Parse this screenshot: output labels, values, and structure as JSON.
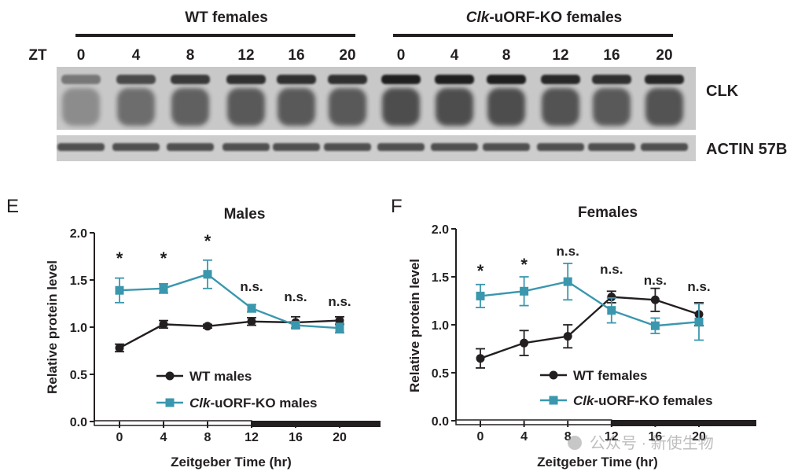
{
  "blot": {
    "group_labels": [
      "WT females",
      "Clk-uORF-KO females"
    ],
    "zt_label": "ZT",
    "lane_labels": [
      "0",
      "4",
      "8",
      "12",
      "16",
      "20",
      "0",
      "4",
      "8",
      "12",
      "16",
      "20"
    ],
    "band_labels": [
      "CLK",
      "ACTIN 57B"
    ]
  },
  "watermark": "公众号 · 新使生物",
  "chart_data": [
    {
      "type": "line",
      "panel_letter": "E",
      "title": "Males",
      "xlabel": "Zeitgeber Time (hr)",
      "ylabel": "Relative protein level",
      "x": [
        0,
        4,
        8,
        12,
        16,
        20
      ],
      "xticks": [
        "0",
        "4",
        "8",
        "12",
        "16",
        "20"
      ],
      "ylim": [
        0,
        2.0
      ],
      "yticks": [
        "0.0",
        "0.5",
        "1.0",
        "1.5",
        "2.0"
      ],
      "grid": false,
      "legend_position": "bottom-center",
      "light_dark_bar": {
        "light": [
          0,
          12
        ],
        "dark": [
          12,
          24
        ]
      },
      "series": [
        {
          "name": "WT males",
          "color": "#231f20",
          "marker": "circle",
          "values": [
            0.78,
            1.03,
            1.01,
            1.06,
            1.05,
            1.07
          ],
          "errors": [
            0.04,
            0.04,
            0.02,
            0.04,
            0.06,
            0.04
          ]
        },
        {
          "name_prefix": "Clk",
          "name_suffix": "-uORF-KO males",
          "color": "#3a97ad",
          "marker": "square",
          "values": [
            1.39,
            1.41,
            1.56,
            1.2,
            1.02,
            0.99
          ],
          "errors": [
            0.13,
            0.05,
            0.15,
            0.04,
            0.03,
            0.05
          ]
        }
      ],
      "annotations": [
        "*",
        "*",
        "*",
        "n.s.",
        "n.s.",
        "n.s."
      ]
    },
    {
      "type": "line",
      "panel_letter": "F",
      "title": "Females",
      "xlabel": "Zeitgeber Time (hr)",
      "ylabel": "Relative protein level",
      "x": [
        0,
        4,
        8,
        12,
        16,
        20
      ],
      "xticks": [
        "0",
        "4",
        "8",
        "12",
        "16",
        "20"
      ],
      "ylim": [
        0,
        2.0
      ],
      "yticks": [
        "0.0",
        "0.5",
        "1.0",
        "1.5",
        "2.0"
      ],
      "grid": false,
      "legend_position": "bottom-center",
      "light_dark_bar": {
        "light": [
          0,
          12
        ],
        "dark": [
          12,
          24
        ]
      },
      "series": [
        {
          "name": "WT females",
          "color": "#231f20",
          "marker": "circle",
          "values": [
            0.65,
            0.81,
            0.88,
            1.29,
            1.26,
            1.11
          ],
          "errors": [
            0.1,
            0.13,
            0.12,
            0.06,
            0.12,
            0.12
          ]
        },
        {
          "name_prefix": "Clk",
          "name_suffix": "-uORF-KO females",
          "color": "#3a97ad",
          "marker": "square",
          "values": [
            1.3,
            1.35,
            1.45,
            1.15,
            0.99,
            1.03
          ],
          "errors": [
            0.12,
            0.15,
            0.19,
            0.13,
            0.08,
            0.19
          ]
        }
      ],
      "annotations": [
        "*",
        "*",
        "n.s.",
        "n.s.",
        "n.s.",
        "n.s."
      ]
    }
  ]
}
